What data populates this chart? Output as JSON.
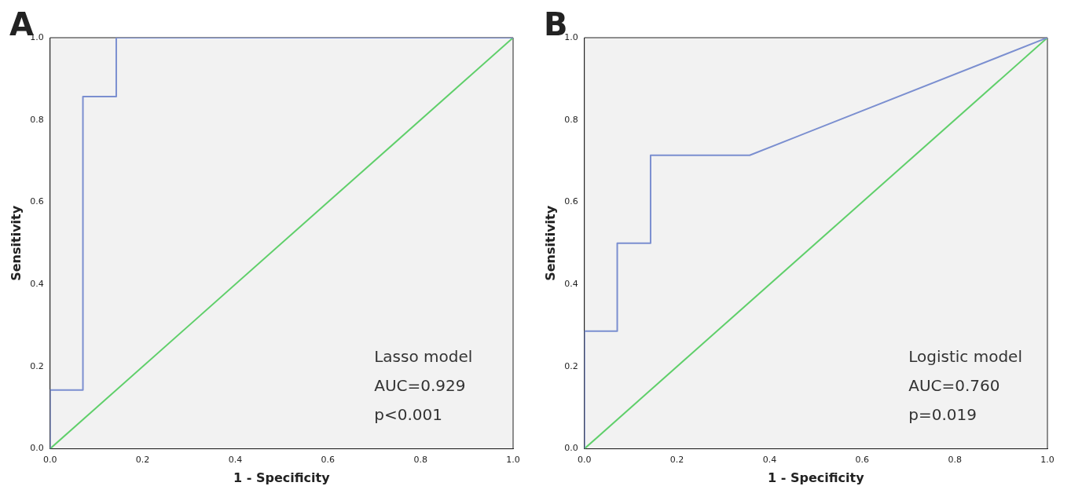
{
  "chart_data": [
    {
      "type": "line",
      "title": "A",
      "xlabel": "1 - Specificity",
      "ylabel": "Sensitivity",
      "xlim": [
        0,
        1
      ],
      "ylim": [
        0,
        1
      ],
      "xticks": [
        {
          "value": 0,
          "label": "0.0"
        },
        {
          "value": 0.2,
          "label": "0.2"
        },
        {
          "value": 0.4,
          "label": "0.4"
        },
        {
          "value": 0.6,
          "label": "0.6"
        },
        {
          "value": 0.8,
          "label": "0.8"
        },
        {
          "value": 1,
          "label": "1.0"
        }
      ],
      "yticks": [
        {
          "value": 0,
          "label": "0.0"
        },
        {
          "value": 0.2,
          "label": "0.2"
        },
        {
          "value": 0.4,
          "label": "0.4"
        },
        {
          "value": 0.6,
          "label": "0.6"
        },
        {
          "value": 0.8,
          "label": "0.8"
        },
        {
          "value": 1,
          "label": "1.0"
        }
      ],
      "series": [
        {
          "color": "#7b8fd0",
          "x": [
            0,
            0,
            0.071,
            0.071,
            0.143,
            0.143,
            1
          ],
          "values": [
            0,
            0.143,
            0.143,
            0.857,
            0.857,
            1,
            1
          ]
        },
        {
          "color": "#5fcf6a",
          "x": [
            0,
            1
          ],
          "values": [
            0,
            1
          ]
        }
      ],
      "annotations": [
        "Lasso model",
        "AUC=0.929",
        "p<0.001"
      ],
      "grid": false,
      "legend": false
    },
    {
      "type": "line",
      "title": "B",
      "xlabel": "1 - Specificity",
      "ylabel": "Sensitivity",
      "xlim": [
        0,
        1
      ],
      "ylim": [
        0,
        1
      ],
      "xticks": [
        {
          "value": 0,
          "label": "0.0"
        },
        {
          "value": 0.2,
          "label": "0.2"
        },
        {
          "value": 0.4,
          "label": "0.4"
        },
        {
          "value": 0.6,
          "label": "0.6"
        },
        {
          "value": 0.8,
          "label": "0.8"
        },
        {
          "value": 1,
          "label": "1.0"
        }
      ],
      "yticks": [
        {
          "value": 0,
          "label": "0.0"
        },
        {
          "value": 0.2,
          "label": "0.2"
        },
        {
          "value": 0.4,
          "label": "0.4"
        },
        {
          "value": 0.6,
          "label": "0.6"
        },
        {
          "value": 0.8,
          "label": "0.8"
        },
        {
          "value": 1,
          "label": "1.0"
        }
      ],
      "series": [
        {
          "color": "#7b8fd0",
          "x": [
            0,
            0,
            0.071,
            0.071,
            0.143,
            0.143,
            0.357,
            1
          ],
          "values": [
            0,
            0.286,
            0.286,
            0.5,
            0.5,
            0.714,
            0.714,
            1
          ]
        },
        {
          "color": "#5fcf6a",
          "x": [
            0,
            1
          ],
          "values": [
            0,
            1
          ]
        }
      ],
      "annotations": [
        "Logistic model",
        "AUC=0.760",
        "p=0.019"
      ],
      "grid": false,
      "legend": false
    }
  ]
}
